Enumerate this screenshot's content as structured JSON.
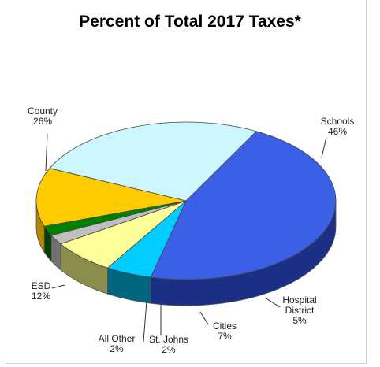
{
  "chart_data": {
    "type": "pie",
    "title": "Percent of Total 2017 Taxes*",
    "slices": [
      {
        "label": "Schools",
        "value": 46,
        "value_text": "46%",
        "color": "#3b5fe6",
        "side_color": "#1c2f86"
      },
      {
        "label": "Hospital District",
        "label_lines": [
          "Hospital",
          "District"
        ],
        "value": 5,
        "value_text": "5%",
        "color": "#00ccff",
        "side_color": "#006680"
      },
      {
        "label": "Cities",
        "value": 7,
        "value_text": "7%",
        "color": "#ffff99",
        "side_color": "#8c8c4d"
      },
      {
        "label": "St. Johns",
        "value": 2,
        "value_text": "2%",
        "color": "#bfbfbf",
        "side_color": "#707070"
      },
      {
        "label": "All Other",
        "value": 2,
        "value_text": "2%",
        "color": "#008000",
        "side_color": "#004000"
      },
      {
        "label": "ESD",
        "value": 12,
        "value_text": "12%",
        "color": "#ffcc00",
        "side_color": "#b38600"
      },
      {
        "label": "County",
        "value": 26,
        "value_text": "26%",
        "color": "#ccf7ff",
        "side_color": "#a6d3d8"
      }
    ]
  }
}
